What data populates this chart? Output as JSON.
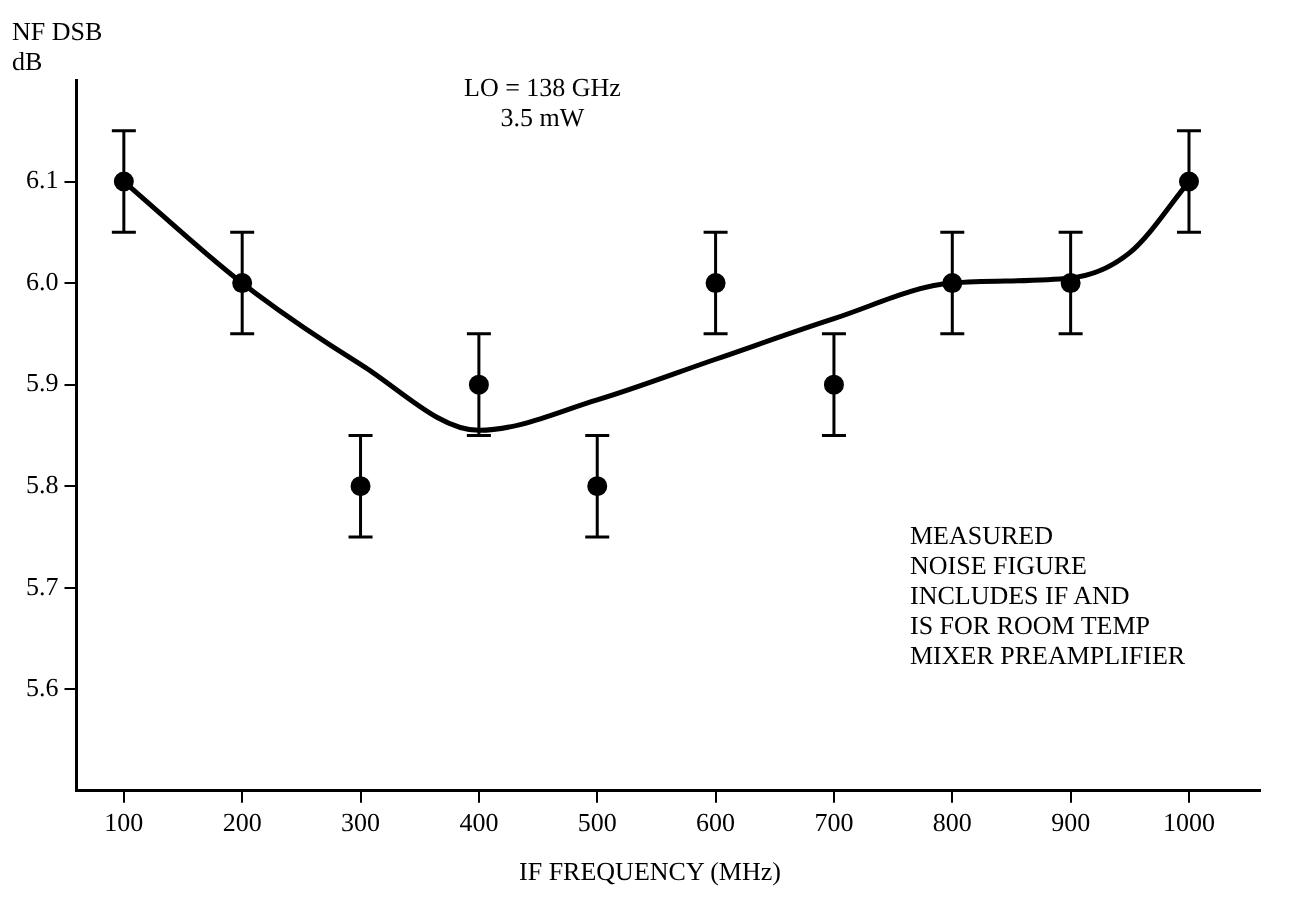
{
  "chart_data": {
    "type": "scatter",
    "xlabel": "IF FREQUENCY (MHz)",
    "ylabel": "NF DSB\ndB",
    "annotations": [
      "LO = 138 GHz\n3.5 mW",
      "MEASURED\nNOISE FIGURE\nINCLUDES IF AND\nIS FOR ROOM TEMP\nMIXER PREAMPLIFIER"
    ],
    "xlim": [
      60,
      1060
    ],
    "xticks": [
      100,
      200,
      300,
      400,
      500,
      600,
      700,
      800,
      900,
      1000
    ],
    "ylim": [
      5.5,
      6.2
    ],
    "yticks": [
      {
        "value": 5.6,
        "label": "5.6"
      },
      {
        "value": 5.7,
        "label": "5.7"
      },
      {
        "value": 5.8,
        "label": "5.8"
      },
      {
        "value": 5.9,
        "label": "5.9"
      },
      {
        "value": 6.0,
        "label": "6.0"
      },
      {
        "value": 6.1,
        "label": "6.1"
      }
    ],
    "grid": false,
    "legend": false,
    "marker": "circle",
    "series": [
      {
        "color": "#000000",
        "x": [
          100,
          200,
          300,
          400,
          500,
          600,
          700,
          800,
          900,
          1000
        ],
        "values": [
          6.1,
          6.0,
          5.8,
          5.9,
          5.8,
          6.0,
          5.9,
          6.0,
          6.0,
          6.1
        ],
        "errors": [
          0.05,
          0.05,
          0.05,
          0.05,
          0.05,
          0.05,
          0.05,
          0.05,
          0.05,
          0.05
        ]
      },
      {
        "type": "line",
        "color": "#000000",
        "marker": "none",
        "x": [
          100,
          200,
          300,
          400,
          500,
          600,
          700,
          800,
          900,
          950,
          1000
        ],
        "values": [
          6.1,
          6.0,
          5.92,
          5.855,
          5.885,
          5.925,
          5.965,
          6.0,
          6.005,
          6.03,
          6.1
        ]
      }
    ]
  }
}
